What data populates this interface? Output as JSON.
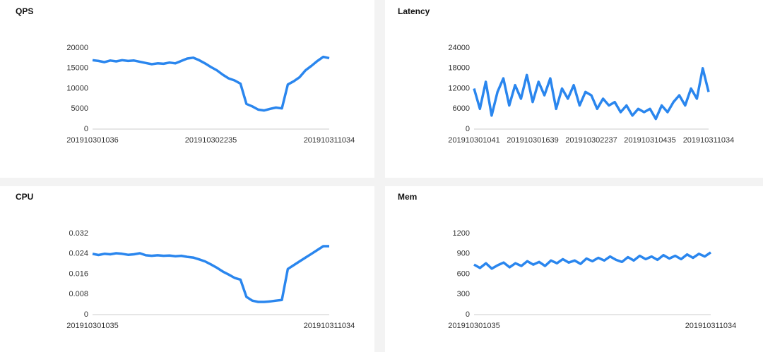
{
  "chart_data": [
    {
      "type": "line",
      "title": "QPS",
      "color": "#2a86ee",
      "categories": [
        "201910301036",
        null,
        null,
        null,
        null,
        null,
        null,
        null,
        null,
        null,
        null,
        null,
        null,
        null,
        null,
        null,
        null,
        null,
        null,
        null,
        "201910302235",
        null,
        null,
        null,
        null,
        null,
        null,
        null,
        null,
        null,
        null,
        null,
        null,
        null,
        null,
        null,
        null,
        null,
        null,
        null,
        "201910311034"
      ],
      "values": [
        17000,
        16800,
        16500,
        16900,
        16700,
        17000,
        16800,
        16900,
        16600,
        16300,
        16000,
        16200,
        16100,
        16400,
        16200,
        16800,
        17400,
        17600,
        17000,
        16200,
        15300,
        14500,
        13400,
        12500,
        12000,
        11200,
        6200,
        5600,
        4800,
        4600,
        5000,
        5300,
        5100,
        11000,
        11800,
        12800,
        14500,
        15600,
        16800,
        17800,
        17500
      ],
      "ylim": [
        0,
        20000
      ],
      "yticks": [
        0,
        5000,
        10000,
        15000,
        20000
      ]
    },
    {
      "type": "line",
      "title": "Latency",
      "color": "#2a86ee",
      "categories": [
        "201910301041",
        null,
        null,
        null,
        null,
        null,
        null,
        null,
        null,
        null,
        "201910301639",
        null,
        null,
        null,
        null,
        null,
        null,
        null,
        null,
        null,
        "201910302237",
        null,
        null,
        null,
        null,
        null,
        null,
        null,
        null,
        null,
        "201910310435",
        null,
        null,
        null,
        null,
        null,
        null,
        null,
        null,
        null,
        "201910311034"
      ],
      "values": [
        12000,
        6000,
        14000,
        4000,
        11000,
        15000,
        7000,
        13000,
        9000,
        16000,
        8000,
        14000,
        10000,
        15000,
        6000,
        12000,
        9000,
        13000,
        7000,
        11000,
        10000,
        6000,
        9000,
        7000,
        8000,
        5000,
        7000,
        4000,
        6000,
        5000,
        6000,
        3000,
        7000,
        5000,
        8000,
        10000,
        7000,
        12000,
        9000,
        18000,
        11000
      ],
      "ylim": [
        0,
        24000
      ],
      "yticks": [
        0,
        6000,
        12000,
        18000,
        24000
      ]
    },
    {
      "type": "line",
      "title": "CPU",
      "color": "#2a86ee",
      "categories": [
        "201910301035",
        null,
        null,
        null,
        null,
        null,
        null,
        null,
        null,
        null,
        null,
        null,
        null,
        null,
        null,
        null,
        null,
        null,
        null,
        null,
        null,
        null,
        null,
        null,
        null,
        null,
        null,
        null,
        null,
        null,
        null,
        null,
        null,
        null,
        null,
        null,
        null,
        null,
        null,
        null,
        "201910311034"
      ],
      "values": [
        0.024,
        0.0235,
        0.024,
        0.0238,
        0.0242,
        0.024,
        0.0236,
        0.0238,
        0.0242,
        0.0234,
        0.0232,
        0.0234,
        0.0232,
        0.0233,
        0.023,
        0.0232,
        0.0228,
        0.0225,
        0.0218,
        0.021,
        0.0198,
        0.0185,
        0.017,
        0.0158,
        0.0145,
        0.0138,
        0.007,
        0.0055,
        0.005,
        0.005,
        0.0052,
        0.0055,
        0.0058,
        0.018,
        0.0195,
        0.021,
        0.0225,
        0.024,
        0.0255,
        0.027,
        0.027
      ],
      "ylim": [
        0,
        0.032
      ],
      "yticks": [
        0,
        0.008,
        0.016,
        0.024,
        0.032
      ]
    },
    {
      "type": "line",
      "title": "Mem",
      "color": "#2a86ee",
      "categories": [
        "201910301035",
        null,
        null,
        null,
        null,
        null,
        null,
        null,
        null,
        null,
        null,
        null,
        null,
        null,
        null,
        null,
        null,
        null,
        null,
        null,
        null,
        null,
        null,
        null,
        null,
        null,
        null,
        null,
        null,
        null,
        null,
        null,
        null,
        null,
        null,
        null,
        null,
        null,
        null,
        null,
        "201910311034"
      ],
      "values": [
        740,
        690,
        760,
        680,
        730,
        770,
        700,
        760,
        720,
        790,
        740,
        780,
        720,
        800,
        760,
        820,
        770,
        800,
        750,
        830,
        790,
        840,
        800,
        860,
        810,
        780,
        850,
        800,
        870,
        820,
        860,
        810,
        880,
        830,
        870,
        820,
        890,
        840,
        900,
        860,
        920
      ],
      "ylim": [
        0,
        1200
      ],
      "yticks": [
        0,
        300,
        600,
        900,
        1200
      ]
    }
  ]
}
